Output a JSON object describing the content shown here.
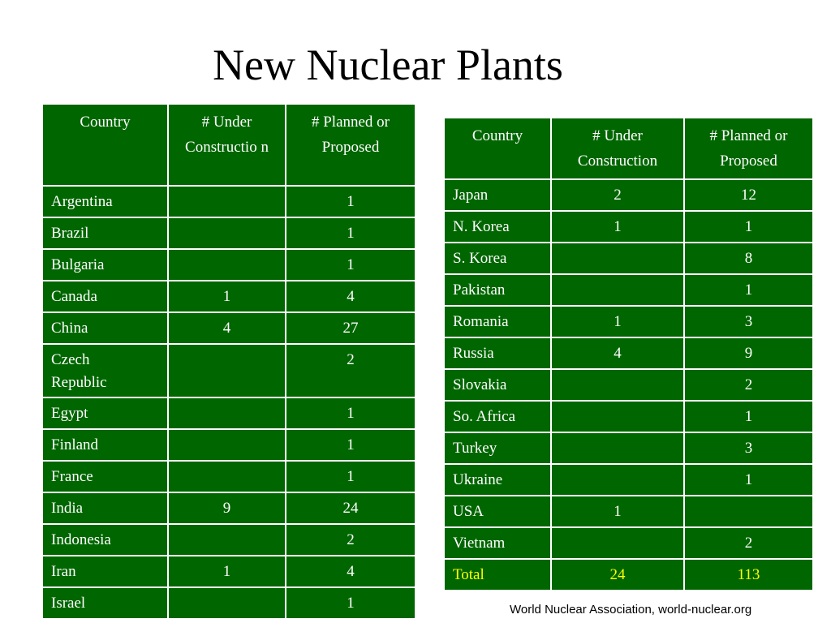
{
  "title": "New Nuclear Plants",
  "headers_left": [
    "Country",
    "# Under Constructio n",
    "# Planned or Proposed"
  ],
  "headers_right": [
    "Country",
    "# Under Construction",
    "# Planned or Proposed"
  ],
  "rows_left": [
    [
      "Argentina",
      "",
      "1"
    ],
    [
      "Brazil",
      "",
      "1"
    ],
    [
      "Bulgaria",
      "",
      "1"
    ],
    [
      "Canada",
      "1",
      "4"
    ],
    [
      "China",
      "4",
      "27"
    ],
    [
      "Czech Republic",
      "",
      "2"
    ],
    [
      "Egypt",
      "",
      "1"
    ],
    [
      "Finland",
      "",
      "1"
    ],
    [
      "France",
      "",
      "1"
    ],
    [
      "India",
      "9",
      "24"
    ],
    [
      "Indonesia",
      "",
      "2"
    ],
    [
      "Iran",
      "1",
      "4"
    ],
    [
      "Israel",
      "",
      "1"
    ]
  ],
  "rows_right": [
    [
      "Japan",
      "2",
      "12"
    ],
    [
      "N. Korea",
      "1",
      "1"
    ],
    [
      "S. Korea",
      "",
      "8"
    ],
    [
      "Pakistan",
      "",
      "1"
    ],
    [
      "Romania",
      "1",
      "3"
    ],
    [
      "Russia",
      "4",
      "9"
    ],
    [
      "Slovakia",
      "",
      "2"
    ],
    [
      "So. Africa",
      "",
      "1"
    ],
    [
      "Turkey",
      "",
      "3"
    ],
    [
      "Ukraine",
      "",
      "1"
    ],
    [
      "USA",
      "1",
      ""
    ],
    [
      "Vietnam",
      "",
      "2"
    ]
  ],
  "total": [
    "Total",
    "24",
    "113"
  ],
  "source": "World Nuclear Association, world-nuclear.org",
  "colors": {
    "table_bg": "#006600",
    "table_text": "#ffffff",
    "total_text": "#ffff00",
    "border": "#ffffff"
  }
}
